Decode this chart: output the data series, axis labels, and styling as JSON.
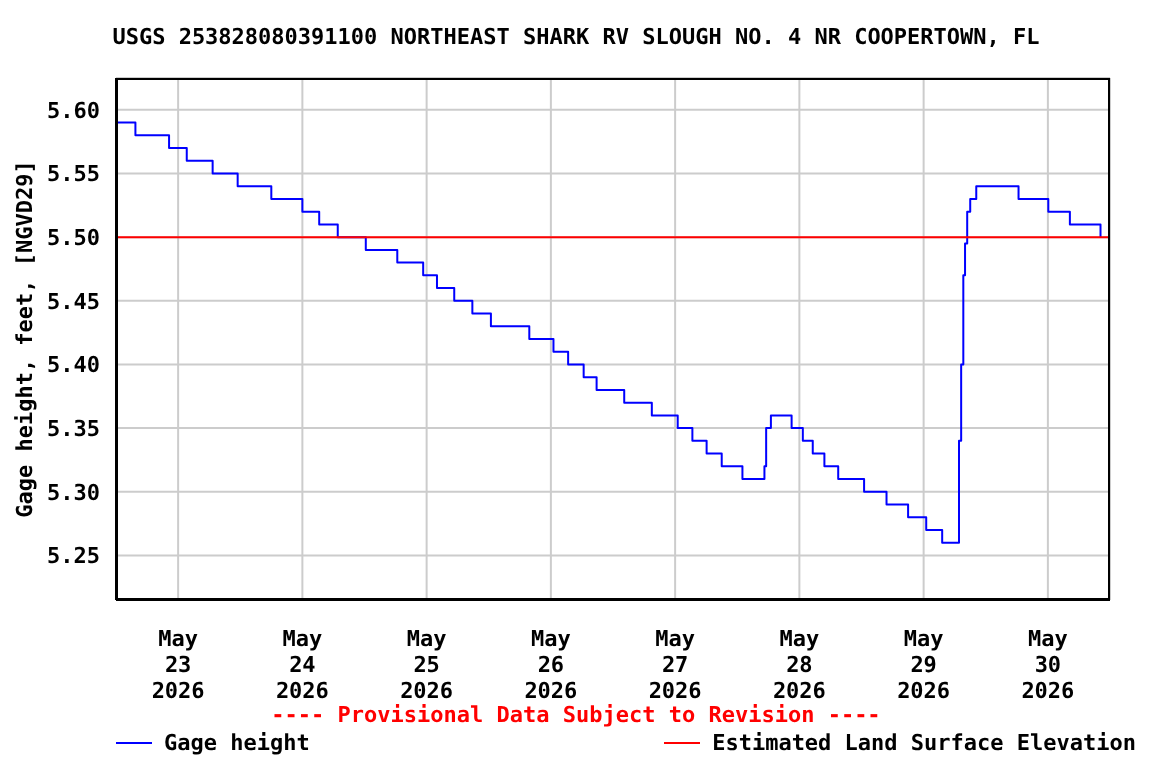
{
  "chart_data": {
    "type": "step",
    "title": "USGS 253828080391100 NORTHEAST SHARK RV SLOUGH NO. 4 NR COOPERTOWN, FL",
    "ylabel": "Gage height, feet, [NGVD29]",
    "annotations": [
      "---- Provisional Data Subject to Revision ----"
    ],
    "xlim": [
      "2026-05-22T12:00",
      "2026-05-30T12:00"
    ],
    "xticks": [
      {
        "value": "2026-05-23",
        "label": "May 23 2026"
      },
      {
        "value": "2026-05-24",
        "label": "May 24 2026"
      },
      {
        "value": "2026-05-25",
        "label": "May 25 2026"
      },
      {
        "value": "2026-05-26",
        "label": "May 26 2026"
      },
      {
        "value": "2026-05-27",
        "label": "May 27 2026"
      },
      {
        "value": "2026-05-28",
        "label": "May 28 2026"
      },
      {
        "value": "2026-05-29",
        "label": "May 29 2026"
      },
      {
        "value": "2026-05-30",
        "label": "May 30 2026"
      }
    ],
    "ylim": [
      5.215,
      5.625
    ],
    "yticks": [
      {
        "value": 5.25,
        "label": "5.25"
      },
      {
        "value": 5.3,
        "label": "5.30"
      },
      {
        "value": 5.35,
        "label": "5.35"
      },
      {
        "value": 5.4,
        "label": "5.40"
      },
      {
        "value": 5.45,
        "label": "5.45"
      },
      {
        "value": 5.5,
        "label": "5.50"
      },
      {
        "value": 5.55,
        "label": "5.55"
      },
      {
        "value": 5.6,
        "label": "5.60"
      }
    ],
    "grid": true,
    "legend": "bottom",
    "series": [
      {
        "name": "Gage height",
        "color": "#0000ff",
        "type": "step",
        "x": [
          "2026-05-22T12:00",
          "2026-05-22T15:45",
          "2026-05-22T22:15",
          "2026-05-23T01:40",
          "2026-05-23T06:40",
          "2026-05-23T11:30",
          "2026-05-23T18:00",
          "2026-05-24T00:00",
          "2026-05-24T03:15",
          "2026-05-24T06:50",
          "2026-05-24T12:15",
          "2026-05-24T18:20",
          "2026-05-24T23:20",
          "2026-05-25T02:00",
          "2026-05-25T05:20",
          "2026-05-25T08:50",
          "2026-05-25T12:25",
          "2026-05-25T19:50",
          "2026-05-26T00:30",
          "2026-05-26T03:20",
          "2026-05-26T06:20",
          "2026-05-26T08:50",
          "2026-05-26T14:10",
          "2026-05-26T19:30",
          "2026-05-27T00:30",
          "2026-05-27T03:20",
          "2026-05-27T06:05",
          "2026-05-27T09:00",
          "2026-05-27T13:00",
          "2026-05-27T17:15",
          "2026-05-27T17:35",
          "2026-05-27T18:30",
          "2026-05-27T22:30",
          "2026-05-28T00:40",
          "2026-05-28T02:35",
          "2026-05-28T04:50",
          "2026-05-28T07:30",
          "2026-05-28T12:30",
          "2026-05-28T16:50",
          "2026-05-28T21:00",
          "2026-05-29T00:30",
          "2026-05-29T03:35",
          "2026-05-29T06:50",
          "2026-05-29T07:15",
          "2026-05-29T07:40",
          "2026-05-29T08:00",
          "2026-05-29T08:25",
          "2026-05-29T09:00",
          "2026-05-29T10:10",
          "2026-05-29T18:20",
          "2026-05-30T00:05",
          "2026-05-30T04:15",
          "2026-05-30T10:10"
        ],
        "values": [
          5.59,
          5.58,
          5.57,
          5.56,
          5.55,
          5.54,
          5.53,
          5.52,
          5.51,
          5.5,
          5.49,
          5.48,
          5.47,
          5.46,
          5.45,
          5.44,
          5.43,
          5.42,
          5.41,
          5.4,
          5.39,
          5.38,
          5.37,
          5.36,
          5.35,
          5.34,
          5.33,
          5.32,
          5.31,
          5.32,
          5.35,
          5.36,
          5.35,
          5.34,
          5.33,
          5.32,
          5.31,
          5.3,
          5.29,
          5.28,
          5.27,
          5.26,
          5.34,
          5.4,
          5.47,
          5.495,
          5.52,
          5.53,
          5.54,
          5.53,
          5.52,
          5.51,
          5.5
        ]
      },
      {
        "name": "Estimated Land Surface Elevation",
        "color": "#ff0000",
        "type": "line",
        "x": [
          "2026-05-22T12:00",
          "2026-05-30T12:00"
        ],
        "values": [
          5.5,
          5.5
        ]
      }
    ]
  }
}
